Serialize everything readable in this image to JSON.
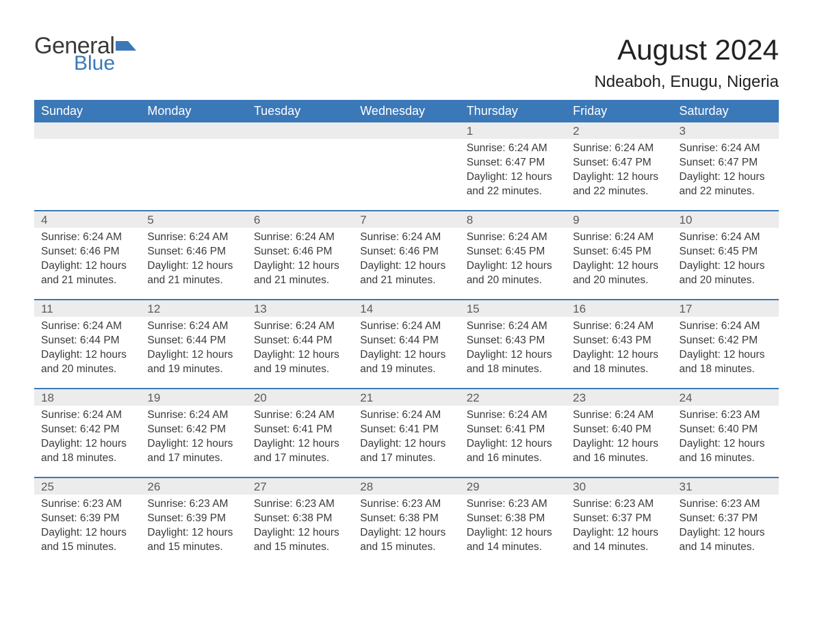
{
  "brand": {
    "word1": "General",
    "word2": "Blue",
    "text_color": "#3a3a3a",
    "accent_color": "#3b78b8"
  },
  "title": "August 2024",
  "location": "Ndeaboh, Enugu, Nigeria",
  "colors": {
    "header_bg": "#3b78b8",
    "header_text": "#ffffff",
    "daynum_bg": "#ececec",
    "daynum_text": "#5a5a5a",
    "body_text": "#3a3a3a",
    "page_bg": "#ffffff",
    "row_divider": "#3b78b8"
  },
  "typography": {
    "title_fontsize": 42,
    "location_fontsize": 24,
    "header_fontsize": 18,
    "daynum_fontsize": 17,
    "body_fontsize": 15.5,
    "font_family": "Arial"
  },
  "day_names": [
    "Sunday",
    "Monday",
    "Tuesday",
    "Wednesday",
    "Thursday",
    "Friday",
    "Saturday"
  ],
  "weeks": [
    [
      {
        "empty": true
      },
      {
        "empty": true
      },
      {
        "empty": true
      },
      {
        "empty": true
      },
      {
        "day": "1",
        "sunrise": "Sunrise: 6:24 AM",
        "sunset": "Sunset: 6:47 PM",
        "daylight1": "Daylight: 12 hours",
        "daylight2": "and 22 minutes."
      },
      {
        "day": "2",
        "sunrise": "Sunrise: 6:24 AM",
        "sunset": "Sunset: 6:47 PM",
        "daylight1": "Daylight: 12 hours",
        "daylight2": "and 22 minutes."
      },
      {
        "day": "3",
        "sunrise": "Sunrise: 6:24 AM",
        "sunset": "Sunset: 6:47 PM",
        "daylight1": "Daylight: 12 hours",
        "daylight2": "and 22 minutes."
      }
    ],
    [
      {
        "day": "4",
        "sunrise": "Sunrise: 6:24 AM",
        "sunset": "Sunset: 6:46 PM",
        "daylight1": "Daylight: 12 hours",
        "daylight2": "and 21 minutes."
      },
      {
        "day": "5",
        "sunrise": "Sunrise: 6:24 AM",
        "sunset": "Sunset: 6:46 PM",
        "daylight1": "Daylight: 12 hours",
        "daylight2": "and 21 minutes."
      },
      {
        "day": "6",
        "sunrise": "Sunrise: 6:24 AM",
        "sunset": "Sunset: 6:46 PM",
        "daylight1": "Daylight: 12 hours",
        "daylight2": "and 21 minutes."
      },
      {
        "day": "7",
        "sunrise": "Sunrise: 6:24 AM",
        "sunset": "Sunset: 6:46 PM",
        "daylight1": "Daylight: 12 hours",
        "daylight2": "and 21 minutes."
      },
      {
        "day": "8",
        "sunrise": "Sunrise: 6:24 AM",
        "sunset": "Sunset: 6:45 PM",
        "daylight1": "Daylight: 12 hours",
        "daylight2": "and 20 minutes."
      },
      {
        "day": "9",
        "sunrise": "Sunrise: 6:24 AM",
        "sunset": "Sunset: 6:45 PM",
        "daylight1": "Daylight: 12 hours",
        "daylight2": "and 20 minutes."
      },
      {
        "day": "10",
        "sunrise": "Sunrise: 6:24 AM",
        "sunset": "Sunset: 6:45 PM",
        "daylight1": "Daylight: 12 hours",
        "daylight2": "and 20 minutes."
      }
    ],
    [
      {
        "day": "11",
        "sunrise": "Sunrise: 6:24 AM",
        "sunset": "Sunset: 6:44 PM",
        "daylight1": "Daylight: 12 hours",
        "daylight2": "and 20 minutes."
      },
      {
        "day": "12",
        "sunrise": "Sunrise: 6:24 AM",
        "sunset": "Sunset: 6:44 PM",
        "daylight1": "Daylight: 12 hours",
        "daylight2": "and 19 minutes."
      },
      {
        "day": "13",
        "sunrise": "Sunrise: 6:24 AM",
        "sunset": "Sunset: 6:44 PM",
        "daylight1": "Daylight: 12 hours",
        "daylight2": "and 19 minutes."
      },
      {
        "day": "14",
        "sunrise": "Sunrise: 6:24 AM",
        "sunset": "Sunset: 6:44 PM",
        "daylight1": "Daylight: 12 hours",
        "daylight2": "and 19 minutes."
      },
      {
        "day": "15",
        "sunrise": "Sunrise: 6:24 AM",
        "sunset": "Sunset: 6:43 PM",
        "daylight1": "Daylight: 12 hours",
        "daylight2": "and 18 minutes."
      },
      {
        "day": "16",
        "sunrise": "Sunrise: 6:24 AM",
        "sunset": "Sunset: 6:43 PM",
        "daylight1": "Daylight: 12 hours",
        "daylight2": "and 18 minutes."
      },
      {
        "day": "17",
        "sunrise": "Sunrise: 6:24 AM",
        "sunset": "Sunset: 6:42 PM",
        "daylight1": "Daylight: 12 hours",
        "daylight2": "and 18 minutes."
      }
    ],
    [
      {
        "day": "18",
        "sunrise": "Sunrise: 6:24 AM",
        "sunset": "Sunset: 6:42 PM",
        "daylight1": "Daylight: 12 hours",
        "daylight2": "and 18 minutes."
      },
      {
        "day": "19",
        "sunrise": "Sunrise: 6:24 AM",
        "sunset": "Sunset: 6:42 PM",
        "daylight1": "Daylight: 12 hours",
        "daylight2": "and 17 minutes."
      },
      {
        "day": "20",
        "sunrise": "Sunrise: 6:24 AM",
        "sunset": "Sunset: 6:41 PM",
        "daylight1": "Daylight: 12 hours",
        "daylight2": "and 17 minutes."
      },
      {
        "day": "21",
        "sunrise": "Sunrise: 6:24 AM",
        "sunset": "Sunset: 6:41 PM",
        "daylight1": "Daylight: 12 hours",
        "daylight2": "and 17 minutes."
      },
      {
        "day": "22",
        "sunrise": "Sunrise: 6:24 AM",
        "sunset": "Sunset: 6:41 PM",
        "daylight1": "Daylight: 12 hours",
        "daylight2": "and 16 minutes."
      },
      {
        "day": "23",
        "sunrise": "Sunrise: 6:24 AM",
        "sunset": "Sunset: 6:40 PM",
        "daylight1": "Daylight: 12 hours",
        "daylight2": "and 16 minutes."
      },
      {
        "day": "24",
        "sunrise": "Sunrise: 6:23 AM",
        "sunset": "Sunset: 6:40 PM",
        "daylight1": "Daylight: 12 hours",
        "daylight2": "and 16 minutes."
      }
    ],
    [
      {
        "day": "25",
        "sunrise": "Sunrise: 6:23 AM",
        "sunset": "Sunset: 6:39 PM",
        "daylight1": "Daylight: 12 hours",
        "daylight2": "and 15 minutes."
      },
      {
        "day": "26",
        "sunrise": "Sunrise: 6:23 AM",
        "sunset": "Sunset: 6:39 PM",
        "daylight1": "Daylight: 12 hours",
        "daylight2": "and 15 minutes."
      },
      {
        "day": "27",
        "sunrise": "Sunrise: 6:23 AM",
        "sunset": "Sunset: 6:38 PM",
        "daylight1": "Daylight: 12 hours",
        "daylight2": "and 15 minutes."
      },
      {
        "day": "28",
        "sunrise": "Sunrise: 6:23 AM",
        "sunset": "Sunset: 6:38 PM",
        "daylight1": "Daylight: 12 hours",
        "daylight2": "and 15 minutes."
      },
      {
        "day": "29",
        "sunrise": "Sunrise: 6:23 AM",
        "sunset": "Sunset: 6:38 PM",
        "daylight1": "Daylight: 12 hours",
        "daylight2": "and 14 minutes."
      },
      {
        "day": "30",
        "sunrise": "Sunrise: 6:23 AM",
        "sunset": "Sunset: 6:37 PM",
        "daylight1": "Daylight: 12 hours",
        "daylight2": "and 14 minutes."
      },
      {
        "day": "31",
        "sunrise": "Sunrise: 6:23 AM",
        "sunset": "Sunset: 6:37 PM",
        "daylight1": "Daylight: 12 hours",
        "daylight2": "and 14 minutes."
      }
    ]
  ]
}
